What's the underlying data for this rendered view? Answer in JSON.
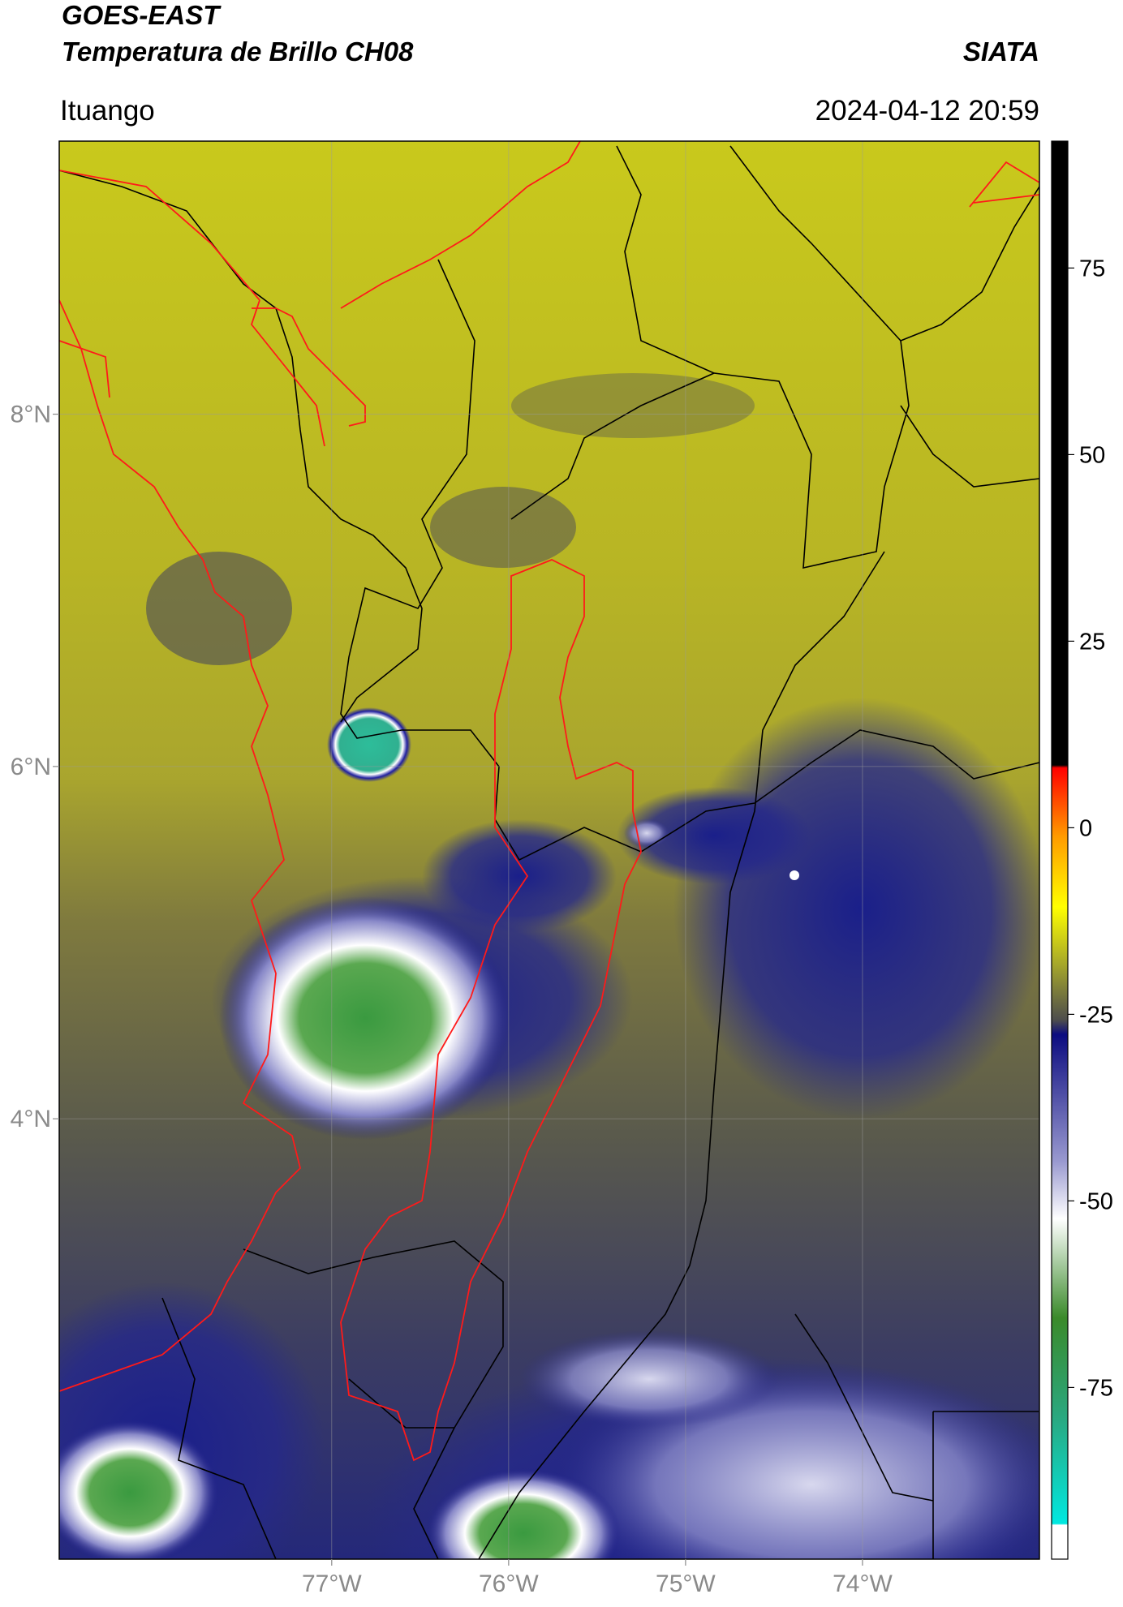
{
  "header": {
    "title": "GOES-EAST",
    "subtitle": "Temperatura de Brillo CH08",
    "source": "SIATA",
    "location": "Ituango",
    "datetime": "2024-04-12 20:59"
  },
  "map": {
    "xlim": [
      -78.54,
      -73.0
    ],
    "ylim": [
      1.5,
      9.55
    ],
    "xticks": [
      {
        "value": -77,
        "label": "77°W"
      },
      {
        "value": -76,
        "label": "76°W"
      },
      {
        "value": -75,
        "label": "75°W"
      },
      {
        "value": -74,
        "label": "74°W"
      }
    ],
    "yticks": [
      {
        "value": 8,
        "label": "8°N"
      },
      {
        "value": 6,
        "label": "6°N"
      },
      {
        "value": 4,
        "label": "4°N"
      }
    ],
    "grid": true
  },
  "colorbar": {
    "lim": [
      -98,
      92
    ],
    "ticks": [
      75,
      50,
      25,
      0,
      -25,
      -50,
      -75
    ]
  }
}
